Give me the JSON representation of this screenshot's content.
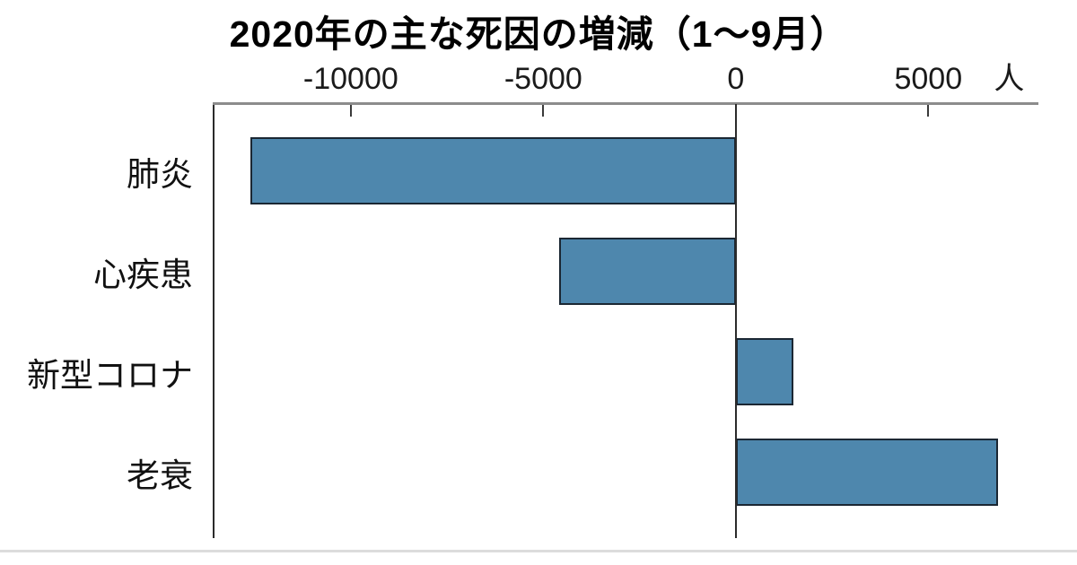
{
  "page": {
    "background": "#ffffff"
  },
  "chart_data": {
    "type": "bar",
    "orientation": "horizontal",
    "title": "2020年の主な死因の増減（1～9月）",
    "unit_label": "人",
    "categories": [
      "肺炎",
      "心疾患",
      "新型コロナ",
      "老衰"
    ],
    "values": [
      -12600,
      -4600,
      1500,
      6800
    ],
    "xlim": [
      -13540,
      7860
    ],
    "xticks": {
      "labels": [
        "-10000",
        "-5000",
        "0",
        "5000"
      ],
      "values": [
        -10000,
        -5000,
        0,
        5000
      ]
    },
    "grid": false,
    "legend": false,
    "colors": {
      "bar_fill": "#4e87ad",
      "bar_border": "#1b2733",
      "axis_line": "#8c8c8c",
      "zero_line": "#2b2b2b",
      "text": "#111111",
      "divider": "#dcdcdc"
    }
  }
}
